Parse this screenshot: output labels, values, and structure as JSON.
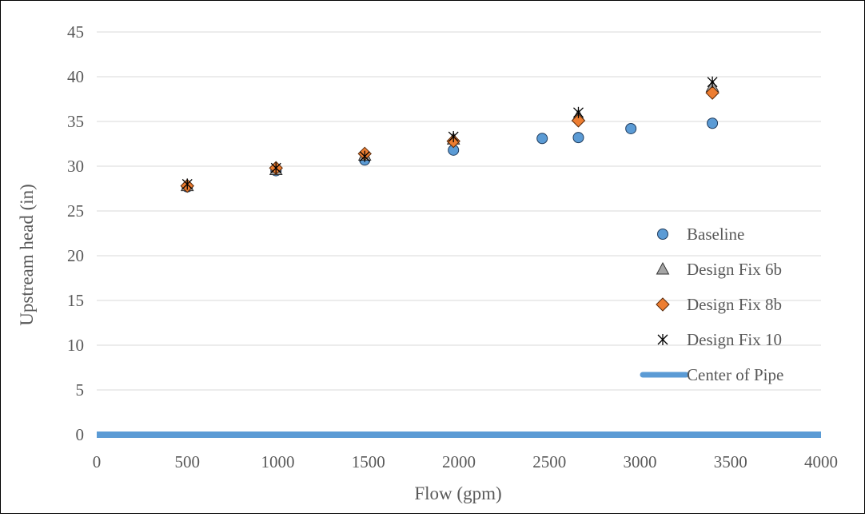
{
  "chart_data": {
    "type": "scatter",
    "title": "",
    "xlabel": "Flow (gpm)",
    "ylabel": "Upstream head (in)",
    "xlim": [
      0,
      4000
    ],
    "ylim": [
      0,
      45
    ],
    "xticks": [
      0,
      500,
      1000,
      1500,
      2000,
      2500,
      3000,
      3500,
      4000
    ],
    "yticks": [
      0,
      5,
      10,
      15,
      20,
      25,
      30,
      35,
      40,
      45
    ],
    "grid": "horizontal",
    "legend_position": "right",
    "series": [
      {
        "name": "Baseline",
        "marker": "circle",
        "color": "#5B9BD5",
        "x": [
          500,
          990,
          1480,
          1970,
          2460,
          2660,
          2950,
          3400
        ],
        "y": [
          27.7,
          29.5,
          30.7,
          31.8,
          33.1,
          33.2,
          34.2,
          34.8
        ]
      },
      {
        "name": "Design Fix 6b",
        "marker": "triangle",
        "color": "#A5A5A5",
        "x": [
          500,
          990,
          1480,
          1970,
          2660,
          3400
        ],
        "y": [
          27.8,
          29.6,
          31.2,
          33.0,
          35.6,
          38.9
        ]
      },
      {
        "name": "Design Fix 8b",
        "marker": "diamond",
        "color": "#ED7D31",
        "x": [
          500,
          990,
          1480,
          1970,
          2660,
          3400
        ],
        "y": [
          27.8,
          29.8,
          31.4,
          32.8,
          35.1,
          38.2
        ]
      },
      {
        "name": "Design Fix 10",
        "marker": "asterisk",
        "color": "#000000",
        "x": [
          500,
          990,
          1480,
          1970,
          2660,
          3400
        ],
        "y": [
          28.0,
          29.8,
          31.1,
          33.3,
          36.0,
          39.4
        ]
      },
      {
        "name": "Center of Pipe",
        "marker": "line",
        "color": "#5B9BD5",
        "x": [
          0,
          4000
        ],
        "y": [
          0,
          0
        ]
      }
    ]
  }
}
